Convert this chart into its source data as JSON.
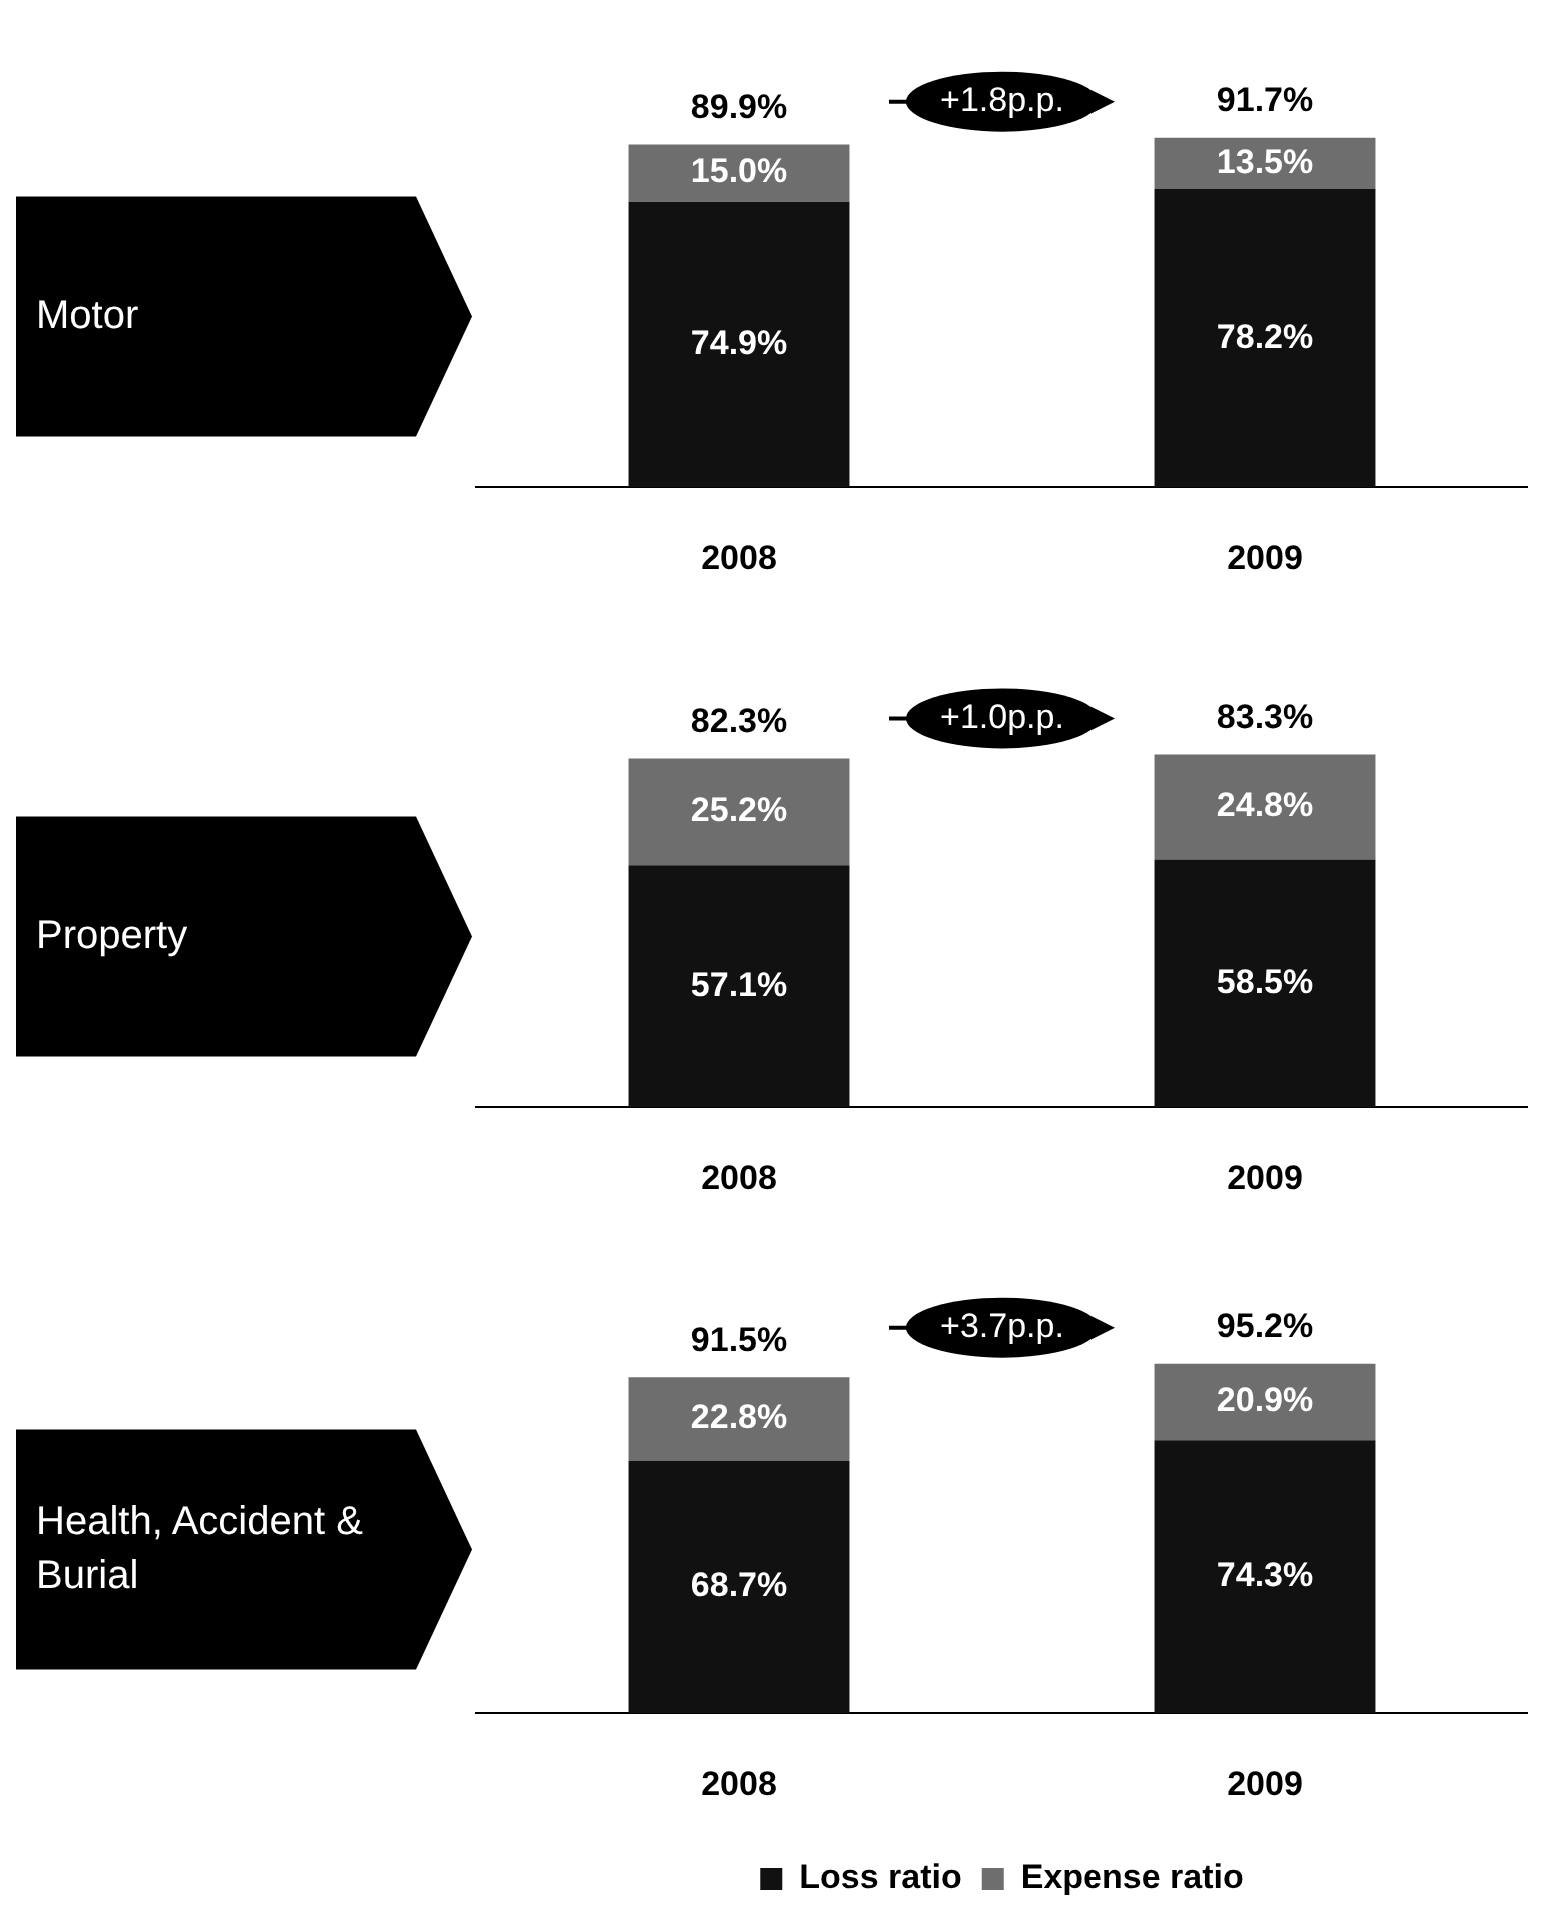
{
  "chart_data": [
    {
      "type": "bar",
      "ylabel": "Motor",
      "categories": [
        "2008",
        "2009"
      ],
      "stacked": true,
      "tick_labels": "x",
      "series": [
        {
          "color": "#111111",
          "values": [
            74.9,
            78.2
          ],
          "value_labels": [
            "74.9%",
            "78.2%"
          ]
        },
        {
          "color": "#6e6e6e",
          "values": [
            15.0,
            13.5
          ],
          "value_labels": [
            "15.0%",
            "13.5%"
          ]
        }
      ],
      "totals": [
        "89.9%",
        "91.7%"
      ],
      "annotations": [
        "+1.8p.p."
      ]
    },
    {
      "type": "bar",
      "ylabel": "Property",
      "categories": [
        "2008",
        "2009"
      ],
      "stacked": true,
      "tick_labels": "x",
      "series": [
        {
          "color": "#111111",
          "values": [
            57.1,
            58.5
          ],
          "value_labels": [
            "57.1%",
            "58.5%"
          ]
        },
        {
          "color": "#6e6e6e",
          "values": [
            25.2,
            24.8
          ],
          "value_labels": [
            "25.2%",
            "24.8%"
          ]
        }
      ],
      "totals": [
        "82.3%",
        "83.3%"
      ],
      "annotations": [
        "+1.0p.p."
      ]
    },
    {
      "type": "bar",
      "ylabel": "Health, Accident & Burial",
      "categories": [
        "2008",
        "2009"
      ],
      "stacked": true,
      "tick_labels": "x",
      "legend": "bottom",
      "series": [
        {
          "name": "Loss ratio",
          "color": "#111111",
          "values": [
            68.7,
            74.3
          ],
          "value_labels": [
            "68.7%",
            "74.3%"
          ]
        },
        {
          "name": "Expense ratio",
          "color": "#6e6e6e",
          "values": [
            22.8,
            20.9
          ],
          "value_labels": [
            "22.8%",
            "20.9%"
          ]
        }
      ],
      "totals": [
        "91.5%",
        "95.2%"
      ],
      "annotations": [
        "+3.7p.p."
      ]
    }
  ]
}
